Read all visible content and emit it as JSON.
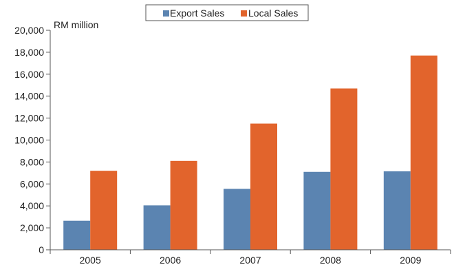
{
  "chart_data": {
    "type": "bar",
    "title": "",
    "xlabel": "",
    "ylabel": "RM million",
    "categories": [
      "2005",
      "2006",
      "2007",
      "2008",
      "2009"
    ],
    "series": [
      {
        "name": "Export Sales",
        "color": "#5b84b1",
        "values": [
          2650,
          4050,
          5550,
          7100,
          7150
        ]
      },
      {
        "name": "Local Sales",
        "color": "#e2642c",
        "values": [
          7200,
          8100,
          11500,
          14700,
          17700
        ]
      }
    ],
    "ylim": [
      0,
      20000
    ],
    "yticks": [
      0,
      2000,
      4000,
      6000,
      8000,
      10000,
      12000,
      14000,
      16000,
      18000,
      20000
    ],
    "ytick_labels": [
      "0",
      "2,000",
      "4,000",
      "6,000",
      "8,000",
      "10,000",
      "12,000",
      "14,000",
      "16,000",
      "18,000",
      "20,000"
    ],
    "grid": false,
    "legend": "top-center"
  }
}
